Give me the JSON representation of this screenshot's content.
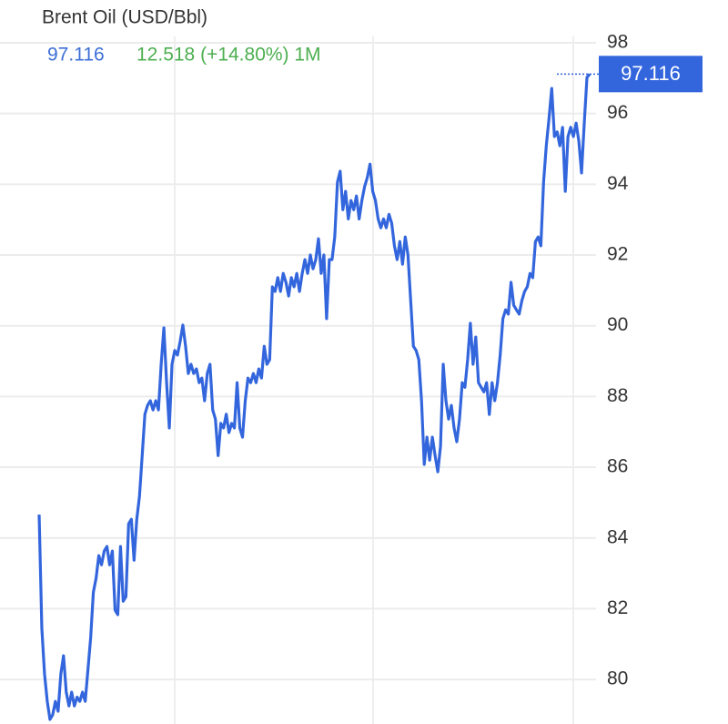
{
  "chart_data": {
    "type": "line",
    "title": "Brent Oil (USD/Bbl)",
    "price": "97.116",
    "change": "12.518 (+14.80%) 1M",
    "color": "#3366dd",
    "ylim": [
      78.74,
      99.21
    ],
    "yticks": [
      80,
      82,
      84,
      86,
      88,
      90,
      92,
      94,
      96,
      98
    ],
    "grid": true,
    "values": [
      84.66,
      81.44,
      80.15,
      79.38,
      78.87,
      79.0,
      79.38,
      79.1,
      80.15,
      80.67,
      79.64,
      79.25,
      79.64,
      79.25,
      79.5,
      79.38,
      79.64,
      79.38,
      80.28,
      81.18,
      82.47,
      82.86,
      83.5,
      83.24,
      83.63,
      83.76,
      83.24,
      83.63,
      81.96,
      81.83,
      83.76,
      82.21,
      82.34,
      84.4,
      84.53,
      83.37,
      84.53,
      85.18,
      86.33,
      87.5,
      87.75,
      87.88,
      87.62,
      87.88,
      87.62,
      88.91,
      89.94,
      88.39,
      87.11,
      88.91,
      89.3,
      89.17,
      89.56,
      90.02,
      89.42,
      88.65,
      88.91,
      88.65,
      88.78,
      88.39,
      88.52,
      87.88,
      88.65,
      88.91,
      87.62,
      87.36,
      86.33,
      87.24,
      87.11,
      87.5,
      86.98,
      87.24,
      87.11,
      88.39,
      87.11,
      86.85,
      87.88,
      88.52,
      88.39,
      88.65,
      88.39,
      88.78,
      88.52,
      89.42,
      88.91,
      89.04,
      91.1,
      90.97,
      91.36,
      90.97,
      91.48,
      91.23,
      90.84,
      91.36,
      91.1,
      91.48,
      90.97,
      91.48,
      91.87,
      91.48,
      92.0,
      91.61,
      91.87,
      92.46,
      91.48,
      92.0,
      90.2,
      91.87,
      91.87,
      92.51,
      94.06,
      94.37,
      93.28,
      93.8,
      93.02,
      93.54,
      93.28,
      93.67,
      93.02,
      93.54,
      93.93,
      94.19,
      94.57,
      93.8,
      93.54,
      93.02,
      92.77,
      93.02,
      92.77,
      93.15,
      92.9,
      92.26,
      91.87,
      92.38,
      91.74,
      92.51,
      92.0,
      90.71,
      89.42,
      89.3,
      89.04,
      87.88,
      86.08,
      86.85,
      86.2,
      86.85,
      86.33,
      85.87,
      86.59,
      88.91,
      87.88,
      87.36,
      87.75,
      87.11,
      86.72,
      87.36,
      88.39,
      88.26,
      89.04,
      90.07,
      88.91,
      89.68,
      88.39,
      88.26,
      88.13,
      88.39,
      87.49,
      88.39,
      87.88,
      88.39,
      89.17,
      90.2,
      90.45,
      90.33,
      91.23,
      90.58,
      90.45,
      90.33,
      90.71,
      90.97,
      91.1,
      91.48,
      91.36,
      92.38,
      92.51,
      92.26,
      94.06,
      95.09,
      95.86,
      96.71,
      95.35,
      95.48,
      95.09,
      95.61,
      93.8,
      95.35,
      95.61,
      95.35,
      95.73,
      95.22,
      94.32,
      95.73,
      97.02,
      97.116
    ]
  }
}
